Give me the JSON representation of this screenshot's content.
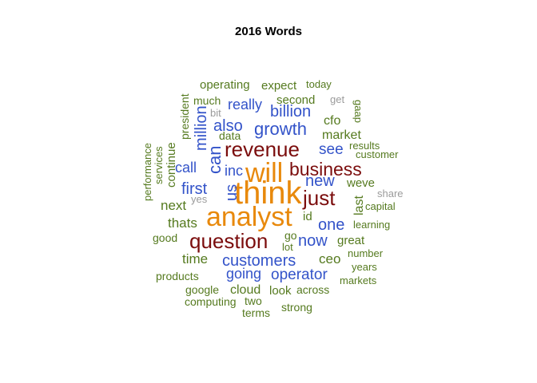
{
  "chart_data": {
    "type": "wordcloud",
    "title": "2016 Words",
    "colors": {
      "tier1": "#e8890c",
      "tier2": "#7b0d0d",
      "tier3": "#3353c9",
      "tier4": "#557a1f",
      "tier5": "#9b9b9b"
    },
    "words": [
      {
        "text": "think",
        "tier": 1
      },
      {
        "text": "analyst",
        "tier": 1
      },
      {
        "text": "will",
        "tier": 1
      },
      {
        "text": "revenue",
        "tier": 2
      },
      {
        "text": "question",
        "tier": 2
      },
      {
        "text": "business",
        "tier": 2
      },
      {
        "text": "just",
        "tier": 2
      },
      {
        "text": "growth",
        "tier": 3
      },
      {
        "text": "customers",
        "tier": 3
      },
      {
        "text": "can",
        "tier": 3
      },
      {
        "text": "also",
        "tier": 3
      },
      {
        "text": "billion",
        "tier": 3
      },
      {
        "text": "million",
        "tier": 3
      },
      {
        "text": "us",
        "tier": 3
      },
      {
        "text": "first",
        "tier": 3
      },
      {
        "text": "new",
        "tier": 3
      },
      {
        "text": "one",
        "tier": 3
      },
      {
        "text": "now",
        "tier": 3
      },
      {
        "text": "operator",
        "tier": 3
      },
      {
        "text": "see",
        "tier": 3
      },
      {
        "text": "really",
        "tier": 3
      },
      {
        "text": "call",
        "tier": 3
      },
      {
        "text": "inc",
        "tier": 3
      },
      {
        "text": "going",
        "tier": 3
      },
      {
        "text": "operating",
        "tier": 4
      },
      {
        "text": "expect",
        "tier": 4
      },
      {
        "text": "today",
        "tier": 4
      },
      {
        "text": "much",
        "tier": 4
      },
      {
        "text": "second",
        "tier": 4
      },
      {
        "text": "get",
        "tier": 5
      },
      {
        "text": "president",
        "tier": 4
      },
      {
        "text": "bit",
        "tier": 5
      },
      {
        "text": "gaap",
        "tier": 4
      },
      {
        "text": "cfo",
        "tier": 4
      },
      {
        "text": "market",
        "tier": 4
      },
      {
        "text": "data",
        "tier": 4
      },
      {
        "text": "results",
        "tier": 4
      },
      {
        "text": "customer",
        "tier": 4
      },
      {
        "text": "continue",
        "tier": 4
      },
      {
        "text": "services",
        "tier": 4
      },
      {
        "text": "performance",
        "tier": 4
      },
      {
        "text": "weve",
        "tier": 4
      },
      {
        "text": "last",
        "tier": 4
      },
      {
        "text": "share",
        "tier": 5
      },
      {
        "text": "yes",
        "tier": 5
      },
      {
        "text": "capital",
        "tier": 4
      },
      {
        "text": "next",
        "tier": 4
      },
      {
        "text": "id",
        "tier": 4
      },
      {
        "text": "thats",
        "tier": 4
      },
      {
        "text": "learning",
        "tier": 4
      },
      {
        "text": "good",
        "tier": 4
      },
      {
        "text": "go",
        "tier": 4
      },
      {
        "text": "great",
        "tier": 4
      },
      {
        "text": "lot",
        "tier": 4
      },
      {
        "text": "time",
        "tier": 4
      },
      {
        "text": "number",
        "tier": 4
      },
      {
        "text": "ceo",
        "tier": 4
      },
      {
        "text": "years",
        "tier": 4
      },
      {
        "text": "products",
        "tier": 4
      },
      {
        "text": "markets",
        "tier": 4
      },
      {
        "text": "cloud",
        "tier": 4
      },
      {
        "text": "look",
        "tier": 4
      },
      {
        "text": "across",
        "tier": 4
      },
      {
        "text": "google",
        "tier": 4
      },
      {
        "text": "computing",
        "tier": 4
      },
      {
        "text": "two",
        "tier": 4
      },
      {
        "text": "strong",
        "tier": 4
      },
      {
        "text": "terms",
        "tier": 4
      }
    ]
  }
}
